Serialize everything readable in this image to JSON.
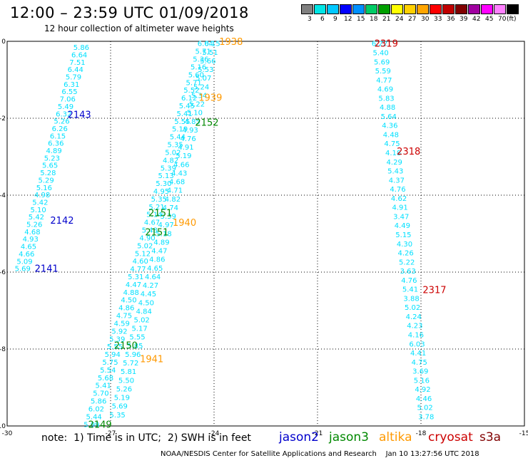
{
  "header": {
    "title": "12:00 – 23:59 UTC 01/09/2018",
    "subtitle": "12 hour collection of altimeter wave heights"
  },
  "color_scale": {
    "colors": [
      "#808080",
      "#00e5e5",
      "#00c8ff",
      "#0000ff",
      "#0090ff",
      "#00cc66",
      "#00a000",
      "#ffff00",
      "#ffd000",
      "#ffa500",
      "#ff0000",
      "#c00000",
      "#800000",
      "#a000a0",
      "#ff00ff",
      "#ff80ff",
      "#000000"
    ],
    "labels": [
      "3",
      "6",
      "9",
      "12",
      "15",
      "18",
      "21",
      "24",
      "27",
      "30",
      "33",
      "36",
      "39",
      "42",
      "45",
      "70",
      "(ft)"
    ]
  },
  "legend": {
    "note": "note:  1) Time is in UTC;  2) SWH is in feet",
    "satellites": [
      {
        "name": "jason2",
        "color": "#0000cc"
      },
      {
        "name": "jason3",
        "color": "#008800"
      },
      {
        "name": "altika",
        "color": "#ff9900"
      },
      {
        "name": "cryosat",
        "color": "#cc0000"
      },
      {
        "name": "s3a",
        "color": "#800000"
      }
    ],
    "credit": "NOAA/NESDIS Center for Satellite Applications and Research    Jan 10 13:27:56 UTC 2018"
  },
  "chart_data": {
    "type": "scatter",
    "title": "12:00 – 23:59 UTC 01/09/2018",
    "subtitle": "12 hour collection of altimeter wave heights",
    "xlim": [
      -30,
      -15
    ],
    "ylim": [
      -10,
      0
    ],
    "xticks": [
      "-30",
      "-27",
      "-24",
      "-21",
      "-18",
      "-15"
    ],
    "yticks": [
      "0",
      "-2",
      "-4",
      "-6",
      "-8",
      "-10"
    ],
    "point_color": "#00e0ff",
    "series": [
      {
        "satellite": "jason2",
        "start": [
          -27.85,
          -0.15
        ],
        "end": [
          -29.55,
          -5.9
        ],
        "values": [
          "5.86",
          "6.64",
          "7.51",
          "6.44",
          "5.79",
          "6.31",
          "6.55",
          "7.06",
          "5.49",
          "6.32",
          "5.26",
          "6.26",
          "6.15",
          "6.36",
          "4.89",
          "5.23",
          "5.65",
          "5.28",
          "5.29",
          "5.16",
          "4.98",
          "5.42",
          "5.10",
          "5.42",
          "5.26",
          "4.68",
          "4.93",
          "4.65",
          "4.66",
          "5.09",
          "5.69"
        ]
      },
      {
        "satellite": "jason3",
        "start": [
          -24.25,
          -0.05
        ],
        "end": [
          -27.55,
          -9.95
        ],
        "values": [
          "6.04",
          "5.71",
          "5.36",
          "5.16",
          "5.60",
          "5.71",
          "5.52",
          "6.12",
          "5.45",
          "5.41",
          "5.55",
          "5.19",
          "5.44",
          "5.35",
          "5.02",
          "4.82",
          "5.39",
          "5.13",
          "5.30",
          "4.95",
          "5.35",
          "5.21",
          "5.14",
          "4.67",
          "5.48",
          "4.90",
          "5.02",
          "5.12",
          "4.60",
          "4.77",
          "5.31",
          "4.47",
          "4.88",
          "4.50",
          "4.86",
          "4.75",
          "4.59",
          "5.92",
          "5.39",
          "5.55",
          "5.94",
          "5.75",
          "5.54",
          "5.68",
          "5.41",
          "5.70",
          "5.86",
          "6.02",
          "5.44",
          "5.99"
        ]
      },
      {
        "satellite": "altika",
        "start": [
          -24.05,
          -0.05
        ],
        "end": [
          -26.8,
          -9.7
        ],
        "values": [
          "6.15",
          "5.51",
          "5.66",
          "5.53",
          "5.07",
          "5.24",
          "5.34",
          "5.22",
          "5.10",
          "4.85",
          "4.93",
          "4.76",
          "4.91",
          "5.19",
          "4.66",
          "4.43",
          "4.68",
          "4.71",
          "4.82",
          "4.74",
          "5.39",
          "4.97",
          "5.18",
          "4.89",
          "4.47",
          "4.86",
          "4.65",
          "4.64",
          "4.27",
          "4.45",
          "4.50",
          "4.84",
          "5.02",
          "5.17",
          "5.55",
          "5.85",
          "5.96",
          "5.72",
          "5.81",
          "5.50",
          "5.26",
          "5.19",
          "5.69",
          "5.35"
        ]
      },
      {
        "satellite": "cryosat",
        "start": [
          -19.2,
          -0.05
        ],
        "end": [
          -17.85,
          -9.75
        ],
        "values": [
          "6.22",
          "5.40",
          "5.69",
          "5.59",
          "4.77",
          "4.69",
          "5.83",
          "4.88",
          "5.64",
          "4.36",
          "4.48",
          "4.75",
          "4.18",
          "4.29",
          "5.43",
          "4.37",
          "4.76",
          "4.62",
          "4.91",
          "3.47",
          "4.49",
          "5.15",
          "4.30",
          "4.26",
          "5.22",
          "3.63",
          "4.76",
          "5.41",
          "3.88",
          "5.02",
          "4.24",
          "4.23",
          "4.16",
          "6.03",
          "4.41",
          "4.75",
          "3.69",
          "5.16",
          "4.92",
          "4.46",
          "5.02",
          "3.78"
        ]
      }
    ],
    "time_labels": [
      {
        "text": "2143",
        "x": -28.25,
        "y": -1.9,
        "satellite": "jason2"
      },
      {
        "text": "2142",
        "x": -28.75,
        "y": -4.65,
        "satellite": "jason2"
      },
      {
        "text": "2141",
        "x": -29.2,
        "y": -5.9,
        "satellite": "jason2"
      },
      {
        "text": "2152",
        "x": -24.55,
        "y": -2.1,
        "satellite": "jason3"
      },
      {
        "text": "2151",
        "x": -25.9,
        "y": -4.45,
        "satellite": "jason3"
      },
      {
        "text": "2151",
        "x": -26.0,
        "y": -4.95,
        "satellite": "jason3"
      },
      {
        "text": "2150",
        "x": -26.9,
        "y": -7.9,
        "satellite": "jason3"
      },
      {
        "text": "2149",
        "x": -27.65,
        "y": -9.95,
        "satellite": "jason3"
      },
      {
        "text": "1938",
        "x": -23.85,
        "y": -0.0,
        "satellite": "altika"
      },
      {
        "text": "1939",
        "x": -24.45,
        "y": -1.45,
        "satellite": "altika"
      },
      {
        "text": "1940",
        "x": -25.2,
        "y": -4.7,
        "satellite": "altika"
      },
      {
        "text": "1941",
        "x": -26.15,
        "y": -8.25,
        "satellite": "altika"
      },
      {
        "text": "2319",
        "x": -19.35,
        "y": -0.05,
        "satellite": "cryosat"
      },
      {
        "text": "2318",
        "x": -18.7,
        "y": -2.85,
        "satellite": "cryosat"
      },
      {
        "text": "2317",
        "x": -17.95,
        "y": -6.45,
        "satellite": "cryosat"
      }
    ]
  }
}
